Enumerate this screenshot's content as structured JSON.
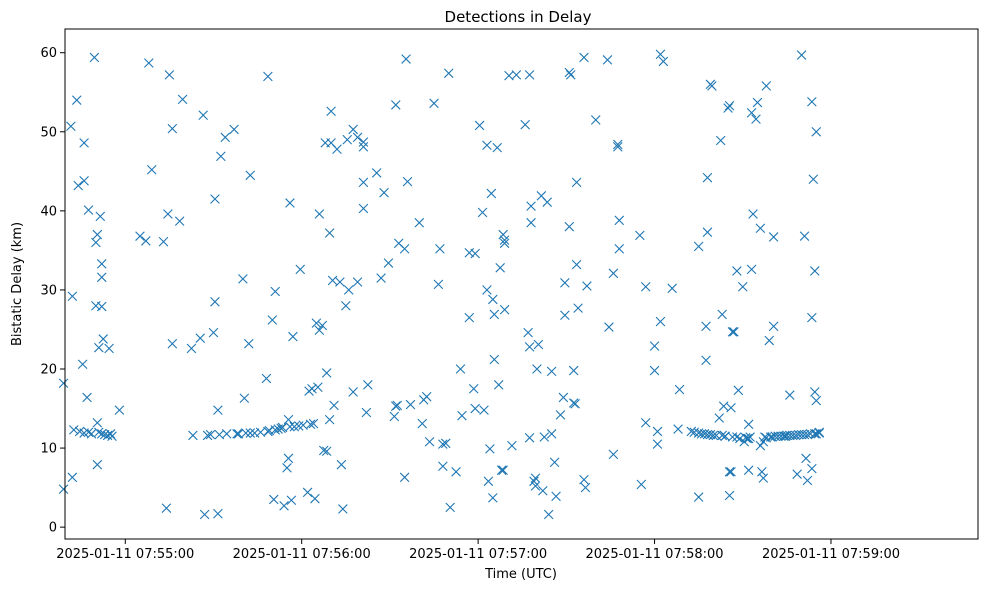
{
  "chart_data": {
    "type": "scatter",
    "title": "Detections in Delay",
    "xlabel": "Time (UTC)",
    "ylabel": "Bistatic Delay (km)",
    "x_unit": "seconds past 2025-01-11 07:55:00",
    "xlim": [
      -20.5,
      290
    ],
    "ylim": [
      -1.5,
      63
    ],
    "grid": false,
    "legend": "none",
    "marker": "x",
    "color": "#1f77b4",
    "x_ticks": [
      {
        "value": 0,
        "label": "2025-01-11 07:55:00"
      },
      {
        "value": 60,
        "label": "2025-01-11 07:56:00"
      },
      {
        "value": 120,
        "label": "2025-01-11 07:57:00"
      },
      {
        "value": 180,
        "label": "2025-01-11 07:58:00"
      },
      {
        "value": 240,
        "label": "2025-01-11 07:59:00"
      }
    ],
    "y_ticks": [
      0,
      10,
      20,
      30,
      40,
      50,
      60
    ],
    "points": [
      [
        -21,
        4.8
      ],
      [
        -21,
        18.2
      ],
      [
        -18.5,
        50.7
      ],
      [
        -18,
        29.2
      ],
      [
        -18,
        6.3
      ],
      [
        -17.5,
        12.3
      ],
      [
        -16.5,
        54.0
      ],
      [
        -16,
        43.2
      ],
      [
        -15.5,
        12.1
      ],
      [
        -14.5,
        20.6
      ],
      [
        -14,
        48.6
      ],
      [
        -14,
        43.8
      ],
      [
        -14,
        11.9
      ],
      [
        -13,
        16.4
      ],
      [
        -12.5,
        40.1
      ],
      [
        -12.5,
        12.0
      ],
      [
        -11.5,
        11.8
      ],
      [
        -10.5,
        59.4
      ],
      [
        -10,
        28.0
      ],
      [
        -10,
        36.0
      ],
      [
        -9.5,
        7.9
      ],
      [
        -9.5,
        13.2
      ],
      [
        -9.5,
        37.0
      ],
      [
        -9,
        22.7
      ],
      [
        -9,
        12.0
      ],
      [
        -8.5,
        39.3
      ],
      [
        -8,
        31.6
      ],
      [
        -8,
        33.3
      ],
      [
        -8,
        27.9
      ],
      [
        -8,
        11.8
      ],
      [
        -7.5,
        23.8
      ],
      [
        -7,
        11.7
      ],
      [
        -6,
        11.6
      ],
      [
        -5.5,
        22.6
      ],
      [
        -5,
        11.8
      ],
      [
        -4.5,
        11.5
      ],
      [
        -2,
        14.8
      ],
      [
        5,
        36.8
      ],
      [
        7,
        36.2
      ],
      [
        8,
        58.7
      ],
      [
        9,
        45.2
      ],
      [
        13,
        36.1
      ],
      [
        14,
        2.4
      ],
      [
        14.5,
        39.6
      ],
      [
        15,
        57.2
      ],
      [
        16,
        50.4
      ],
      [
        16,
        23.2
      ],
      [
        18.5,
        38.7
      ],
      [
        19.5,
        54.1
      ],
      [
        22.5,
        22.6
      ],
      [
        23,
        11.6
      ],
      [
        25.5,
        23.9
      ],
      [
        26.5,
        52.1
      ],
      [
        27,
        1.6
      ],
      [
        28,
        11.6
      ],
      [
        29,
        11.7
      ],
      [
        30,
        24.6
      ],
      [
        30.5,
        41.5
      ],
      [
        30.5,
        28.5
      ],
      [
        31.5,
        14.8
      ],
      [
        31.5,
        1.7
      ],
      [
        32,
        11.7
      ],
      [
        32.5,
        46.9
      ],
      [
        34,
        49.3
      ],
      [
        34.5,
        11.8
      ],
      [
        37,
        50.3
      ],
      [
        38,
        11.8
      ],
      [
        38.5,
        11.8
      ],
      [
        40,
        31.4
      ],
      [
        40.5,
        16.3
      ],
      [
        41,
        11.9
      ],
      [
        42,
        23.2
      ],
      [
        42.5,
        44.5
      ],
      [
        42.5,
        11.9
      ],
      [
        44,
        11.9
      ],
      [
        46,
        12.0
      ],
      [
        48,
        18.8
      ],
      [
        48.5,
        12.1
      ],
      [
        48.5,
        57.0
      ],
      [
        49,
        12.2
      ],
      [
        50,
        26.2
      ],
      [
        50.5,
        3.5
      ],
      [
        51,
        29.8
      ],
      [
        51,
        12.3
      ],
      [
        52,
        12.4
      ],
      [
        53,
        12.5
      ],
      [
        53.5,
        12.6
      ],
      [
        54,
        2.7
      ],
      [
        55,
        7.5
      ],
      [
        55.5,
        8.7
      ],
      [
        55.5,
        13.6
      ],
      [
        56,
        12.7
      ],
      [
        56,
        41.0
      ],
      [
        56.5,
        3.4
      ],
      [
        57,
        24.1
      ],
      [
        57.5,
        12.7
      ],
      [
        59,
        12.8
      ],
      [
        59.5,
        32.6
      ],
      [
        60.5,
        12.9
      ],
      [
        62,
        4.4
      ],
      [
        62.5,
        17.2
      ],
      [
        63,
        13.0
      ],
      [
        63.5,
        17.5
      ],
      [
        64,
        13.1
      ],
      [
        64.5,
        3.6
      ],
      [
        65,
        25.8
      ],
      [
        65.5,
        17.7
      ],
      [
        66,
        39.6
      ],
      [
        66,
        24.9
      ],
      [
        67,
        25.5
      ],
      [
        67.5,
        9.7
      ],
      [
        68,
        48.6
      ],
      [
        68.5,
        9.6
      ],
      [
        68.5,
        19.5
      ],
      [
        69.5,
        13.6
      ],
      [
        69.5,
        37.2
      ],
      [
        70,
        48.6
      ],
      [
        70,
        52.6
      ],
      [
        70.5,
        31.2
      ],
      [
        71,
        15.4
      ],
      [
        72,
        47.8
      ],
      [
        73,
        31.0
      ],
      [
        73.5,
        7.9
      ],
      [
        74,
        2.3
      ],
      [
        75,
        28.0
      ],
      [
        75.5,
        49.0
      ],
      [
        76,
        30.0
      ],
      [
        77.5,
        50.3
      ],
      [
        77.5,
        17.1
      ],
      [
        79,
        31.0
      ],
      [
        79,
        49.3
      ],
      [
        81,
        43.6
      ],
      [
        81,
        48.1
      ],
      [
        81,
        48.7
      ],
      [
        81,
        40.3
      ],
      [
        82,
        14.5
      ],
      [
        82.5,
        18.0
      ],
      [
        85.5,
        44.8
      ],
      [
        87,
        31.5
      ],
      [
        88,
        42.3
      ],
      [
        89.5,
        33.4
      ],
      [
        91.5,
        14.0
      ],
      [
        92,
        53.4
      ],
      [
        92,
        15.3
      ],
      [
        92.5,
        15.4
      ],
      [
        93,
        35.9
      ],
      [
        95,
        6.3
      ],
      [
        95,
        35.2
      ],
      [
        95.5,
        59.2
      ],
      [
        96,
        43.7
      ],
      [
        97,
        15.5
      ],
      [
        100,
        38.5
      ],
      [
        101,
        13.1
      ],
      [
        101.5,
        16.1
      ],
      [
        102.5,
        16.5
      ],
      [
        103.5,
        10.8
      ],
      [
        105,
        53.6
      ],
      [
        106.5,
        30.7
      ],
      [
        107,
        35.2
      ],
      [
        108,
        10.5
      ],
      [
        108,
        7.7
      ],
      [
        109,
        10.6
      ],
      [
        110,
        57.4
      ],
      [
        110.5,
        2.5
      ],
      [
        112.5,
        7.0
      ],
      [
        114,
        20.0
      ],
      [
        114.5,
        14.1
      ],
      [
        117,
        26.5
      ],
      [
        117,
        34.7
      ],
      [
        118.5,
        17.5
      ],
      [
        119,
        34.6
      ],
      [
        119,
        15.0
      ],
      [
        120.5,
        50.8
      ],
      [
        121.5,
        39.8
      ],
      [
        122,
        14.8
      ],
      [
        123,
        30.0
      ],
      [
        123,
        48.3
      ],
      [
        123.5,
        5.8
      ],
      [
        124,
        9.9
      ],
      [
        124.5,
        42.2
      ],
      [
        125,
        3.7
      ],
      [
        125,
        28.8
      ],
      [
        125.5,
        26.9
      ],
      [
        125.5,
        21.2
      ],
      [
        126.5,
        48.0
      ],
      [
        127,
        18.0
      ],
      [
        127.5,
        32.8
      ],
      [
        128,
        7.2
      ],
      [
        128.5,
        37.0
      ],
      [
        128.5,
        7.2
      ],
      [
        129,
        35.9
      ],
      [
        129,
        27.5
      ],
      [
        129,
        36.3
      ],
      [
        130.5,
        57.1
      ],
      [
        131.5,
        10.3
      ],
      [
        133,
        57.2
      ],
      [
        136,
        50.9
      ],
      [
        137,
        24.6
      ],
      [
        137.5,
        57.2
      ],
      [
        137.5,
        11.3
      ],
      [
        137.5,
        22.8
      ],
      [
        138,
        40.6
      ],
      [
        138,
        38.5
      ],
      [
        139,
        5.8
      ],
      [
        139.5,
        5.2
      ],
      [
        139.5,
        6.2
      ],
      [
        140,
        20.0
      ],
      [
        140.5,
        23.1
      ],
      [
        141.5,
        41.9
      ],
      [
        142,
        4.6
      ],
      [
        142.5,
        11.4
      ],
      [
        143.5,
        41.1
      ],
      [
        144,
        1.6
      ],
      [
        145,
        11.8
      ],
      [
        145,
        19.7
      ],
      [
        146,
        8.2
      ],
      [
        146.5,
        3.9
      ],
      [
        148,
        14.2
      ],
      [
        149,
        16.4
      ],
      [
        149.5,
        30.9
      ],
      [
        149.5,
        26.8
      ],
      [
        151,
        38.0
      ],
      [
        151,
        57.5
      ],
      [
        151.5,
        57.2
      ],
      [
        152.5,
        15.7
      ],
      [
        152.5,
        19.8
      ],
      [
        153,
        15.6
      ],
      [
        153.5,
        43.6
      ],
      [
        153.5,
        33.2
      ],
      [
        154,
        27.7
      ],
      [
        156,
        59.4
      ],
      [
        156,
        6.0
      ],
      [
        156.5,
        5.0
      ],
      [
        157,
        30.5
      ],
      [
        160,
        51.5
      ],
      [
        164,
        59.1
      ],
      [
        164.5,
        25.3
      ],
      [
        166,
        32.1
      ],
      [
        166,
        9.2
      ],
      [
        167.5,
        48.1
      ],
      [
        167.5,
        48.4
      ],
      [
        168,
        35.2
      ],
      [
        168,
        38.8
      ],
      [
        175,
        36.9
      ],
      [
        175.5,
        5.4
      ],
      [
        177,
        13.2
      ],
      [
        177,
        30.4
      ],
      [
        180,
        22.9
      ],
      [
        180,
        19.8
      ],
      [
        181,
        10.5
      ],
      [
        181,
        12.1
      ],
      [
        182,
        26.0
      ],
      [
        182,
        59.8
      ],
      [
        183,
        58.9
      ],
      [
        186,
        30.2
      ],
      [
        188,
        12.4
      ],
      [
        188.5,
        17.4
      ],
      [
        192.5,
        12.1
      ],
      [
        193.5,
        12.0
      ],
      [
        195,
        11.9
      ],
      [
        195,
        3.8
      ],
      [
        195,
        35.5
      ],
      [
        196,
        11.8
      ],
      [
        197,
        11.8
      ],
      [
        197.5,
        25.4
      ],
      [
        197.5,
        21.1
      ],
      [
        198,
        37.3
      ],
      [
        198,
        44.2
      ],
      [
        198,
        11.7
      ],
      [
        199,
        56.0
      ],
      [
        199,
        11.7
      ],
      [
        199.5,
        55.8
      ],
      [
        200,
        11.6
      ],
      [
        201,
        11.6
      ],
      [
        202,
        13.8
      ],
      [
        202.5,
        48.9
      ],
      [
        203,
        11.6
      ],
      [
        203,
        26.9
      ],
      [
        203.5,
        15.3
      ],
      [
        204,
        11.5
      ],
      [
        204,
        11.5
      ],
      [
        205,
        53.0
      ],
      [
        205.5,
        53.3
      ],
      [
        205.5,
        7.0
      ],
      [
        205.5,
        4.0
      ],
      [
        206,
        15.1
      ],
      [
        206,
        7.0
      ],
      [
        206.5,
        11.4
      ],
      [
        206.5,
        24.7
      ],
      [
        207,
        24.7
      ],
      [
        208,
        11.4
      ],
      [
        208,
        32.4
      ],
      [
        208.5,
        17.3
      ],
      [
        209,
        11.2
      ],
      [
        210,
        30.4
      ],
      [
        210.5,
        10.8
      ],
      [
        211,
        11.3
      ],
      [
        211.5,
        11.2
      ],
      [
        212,
        11.2
      ],
      [
        212,
        7.2
      ],
      [
        212,
        13.0
      ],
      [
        212.5,
        11.4
      ],
      [
        213,
        52.4
      ],
      [
        213,
        32.6
      ],
      [
        213.5,
        39.6
      ],
      [
        214.5,
        51.6
      ],
      [
        215,
        53.7
      ],
      [
        216,
        37.8
      ],
      [
        216,
        10.3
      ],
      [
        216.5,
        7.0
      ],
      [
        217,
        6.2
      ],
      [
        217,
        10.8
      ],
      [
        217.5,
        11.4
      ],
      [
        218,
        55.8
      ],
      [
        218,
        11.3
      ],
      [
        219,
        23.6
      ],
      [
        219.5,
        11.4
      ],
      [
        220,
        11.4
      ],
      [
        220.5,
        25.4
      ],
      [
        220.5,
        36.7
      ],
      [
        221,
        11.5
      ],
      [
        222,
        11.5
      ],
      [
        223,
        11.5
      ],
      [
        224,
        11.5
      ],
      [
        224.5,
        11.5
      ],
      [
        225,
        11.6
      ],
      [
        226,
        11.6
      ],
      [
        226,
        16.7
      ],
      [
        227,
        11.6
      ],
      [
        228,
        11.6
      ],
      [
        228.5,
        6.7
      ],
      [
        229,
        11.7
      ],
      [
        230,
        11.7
      ],
      [
        230,
        59.7
      ],
      [
        231,
        11.7
      ],
      [
        231,
        36.8
      ],
      [
        231.5,
        8.7
      ],
      [
        232,
        11.7
      ],
      [
        232,
        5.9
      ],
      [
        233,
        11.8
      ],
      [
        233.5,
        53.8
      ],
      [
        233.5,
        26.5
      ],
      [
        233.5,
        7.4
      ],
      [
        234,
        44.0
      ],
      [
        234.5,
        11.8
      ],
      [
        234.5,
        32.4
      ],
      [
        234.5,
        17.1
      ],
      [
        235,
        11.8
      ],
      [
        235,
        16.0
      ],
      [
        235,
        50.0
      ],
      [
        236,
        11.9
      ],
      [
        236,
        12.0
      ]
    ]
  }
}
